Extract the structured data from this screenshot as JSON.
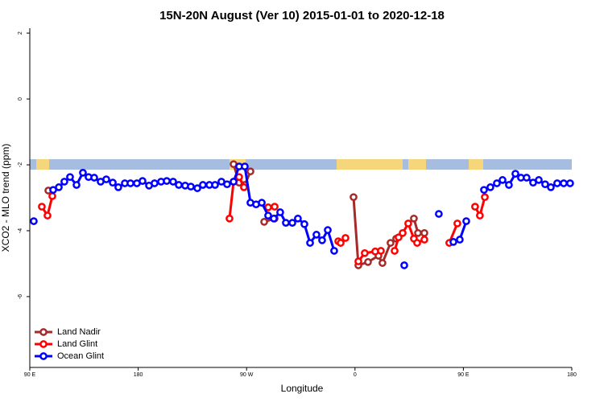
{
  "chart_data": {
    "type": "line",
    "title": "15N-20N August (Ver 10)   2015-01-01 to 2020-12-18",
    "x_label": "Longitude",
    "y_label": "XCO2 - MLO trend (ppm)",
    "xlim": [
      90,
      540
    ],
    "xticks": [
      {
        "value": 90,
        "label": "90 E"
      },
      {
        "value": 180,
        "label": "180"
      },
      {
        "value": 270,
        "label": "90 W"
      },
      {
        "value": 360,
        "label": "0"
      },
      {
        "value": 450,
        "label": "90 E"
      },
      {
        "value": 540,
        "label": "180"
      }
    ],
    "ylim": [
      -8.15,
      2.15
    ],
    "yticks": [
      2,
      0,
      -2,
      -4,
      -6
    ],
    "legend": "bottom-left",
    "series": [
      {
        "name": "Land Nadir",
        "color": "#a52a2a",
        "x": [
          105.4,
          null,
          259.2,
          263.8,
          268.5,
          273.2,
          null,
          284.6,
          293.3,
          null,
          358.8,
          362.8,
          370.8,
          379.5,
          382.8,
          389.5,
          394.2,
          null,
          408.9,
          412.3,
          417.6
        ],
        "values": [
          -2.78,
          null,
          -1.98,
          -2.54,
          -2.61,
          -2.2,
          null,
          -3.73,
          -3.63,
          null,
          -2.98,
          -5.05,
          -4.95,
          -4.76,
          -4.98,
          -4.37,
          -4.24,
          null,
          -3.63,
          -4.07,
          -4.07
        ]
      },
      {
        "name": "Land Glint",
        "color": "#ff0000",
        "x": [
          100.0,
          104.7,
          108.7,
          null,
          255.8,
          259.2,
          263.8,
          267.8,
          null,
          287.9,
          293.3,
          null,
          346.1,
          348.1,
          352.1,
          null,
          362.8,
          368.1,
          376.8,
          381.5,
          null,
          392.9,
          396.2,
          399.6,
          404.2,
          408.9,
          411.6,
          417.6,
          null,
          438.3,
          445.0,
          null,
          459.7,
          463.7,
          467.8
        ],
        "values": [
          -3.27,
          -3.54,
          -2.95,
          null,
          -3.63,
          -2.51,
          -2.37,
          -2.68,
          null,
          -3.29,
          -3.27,
          null,
          -4.32,
          -4.37,
          -4.22,
          null,
          -4.93,
          -4.68,
          -4.63,
          -4.61,
          null,
          -4.61,
          -4.2,
          -4.07,
          -3.78,
          -4.24,
          -4.37,
          -4.27,
          null,
          -4.37,
          -3.78,
          null,
          -3.27,
          -3.54,
          -2.98
        ]
      },
      {
        "name": "Ocean Glint",
        "color": "#0000ff",
        "x": [
          93.3,
          null,
          109.4,
          114.1,
          118.7,
          123.4,
          128.8,
          134.1,
          138.8,
          143.5,
          148.8,
          153.5,
          158.9,
          163.5,
          168.9,
          173.6,
          178.9,
          183.6,
          189.0,
          193.6,
          199.0,
          203.7,
          209.0,
          213.7,
          219.0,
          223.7,
          229.1,
          233.7,
          239.1,
          243.8,
          249.1,
          253.8,
          259.2,
          263.8,
          268.5,
          273.2,
          277.9,
          282.6,
          287.9,
          292.6,
          297.9,
          302.6,
          308.0,
          312.6,
          318.0,
          322.7,
          328.0,
          332.7,
          337.4,
          342.7,
          null,
          400.9,
          null,
          429.6,
          null,
          441.7,
          447.0,
          452.4,
          null,
          467.1,
          472.4,
          477.8,
          482.5,
          487.8,
          493.2,
          497.8,
          502.5,
          507.9,
          512.6,
          517.9,
          522.6,
          527.9,
          533.3,
          538.6
        ],
        "values": [
          -3.71,
          null,
          -2.76,
          -2.68,
          -2.51,
          -2.37,
          -2.61,
          -2.24,
          -2.37,
          -2.39,
          -2.51,
          -2.44,
          -2.54,
          -2.68,
          -2.56,
          -2.56,
          -2.56,
          -2.49,
          -2.63,
          -2.56,
          -2.51,
          -2.49,
          -2.51,
          -2.61,
          -2.63,
          -2.66,
          -2.71,
          -2.61,
          -2.61,
          -2.61,
          -2.51,
          -2.59,
          -2.51,
          -2.05,
          -2.05,
          -3.15,
          -3.2,
          -3.15,
          -3.54,
          -3.63,
          -3.44,
          -3.76,
          -3.76,
          -3.63,
          -3.8,
          -4.37,
          -4.12,
          -4.29,
          -3.98,
          -4.61,
          null,
          -5.05,
          null,
          -3.49,
          null,
          -4.34,
          -4.27,
          -3.71,
          null,
          -2.76,
          -2.68,
          -2.56,
          -2.46,
          -2.61,
          -2.27,
          -2.39,
          -2.39,
          -2.54,
          -2.46,
          -2.59,
          -2.68,
          -2.56,
          -2.56,
          -2.56
        ]
      }
    ]
  }
}
